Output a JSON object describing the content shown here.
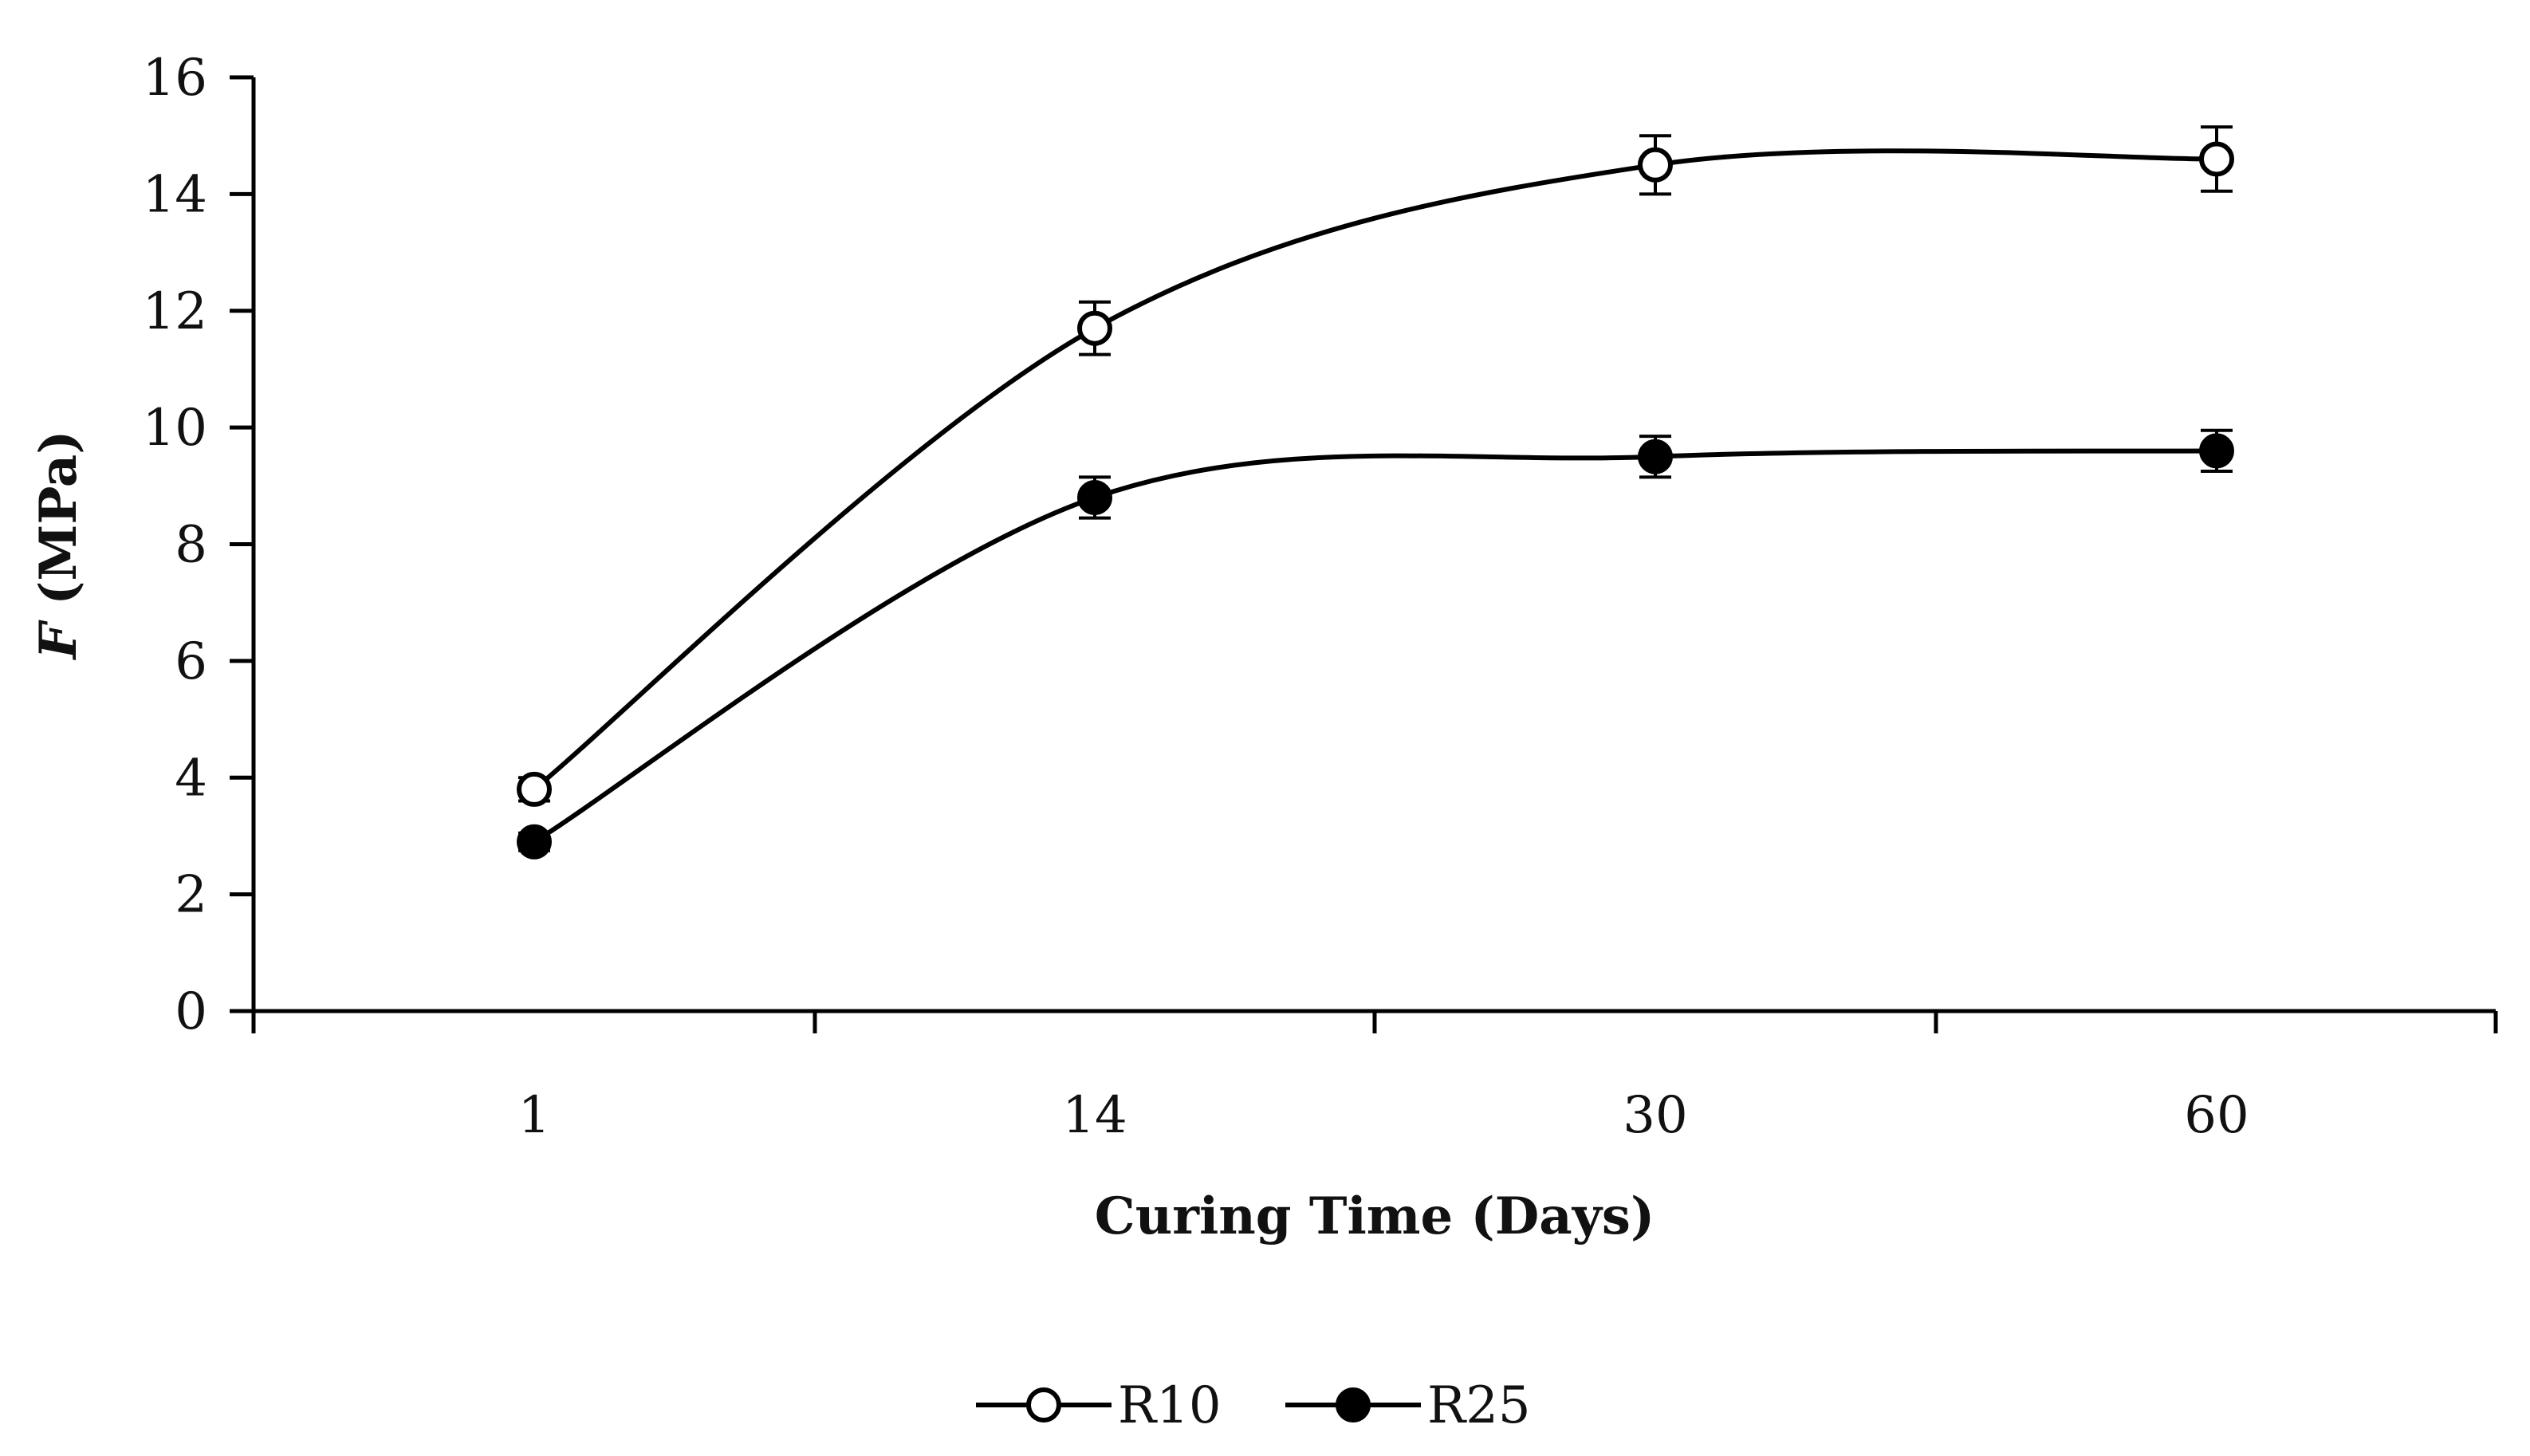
{
  "chart_data": {
    "type": "line",
    "title": "",
    "xlabel": "Curing Time (Days)",
    "ylabel_italic": "F",
    "ylabel_rest": " (MPa)",
    "categories": [
      "1",
      "14",
      "30",
      "60"
    ],
    "ylim": [
      0,
      16
    ],
    "yticks": [
      "0",
      "2",
      "4",
      "6",
      "8",
      "10",
      "12",
      "14",
      "16"
    ],
    "series": [
      {
        "name": "R10",
        "marker": "open-circle",
        "values": [
          3.8,
          11.7,
          14.5,
          14.6
        ],
        "errors": [
          0.2,
          0.45,
          0.5,
          0.55
        ]
      },
      {
        "name": "R25",
        "marker": "filled-circle",
        "values": [
          2.9,
          8.8,
          9.5,
          9.6
        ],
        "errors": [
          0.15,
          0.35,
          0.35,
          0.35
        ]
      }
    ],
    "legend_position": "bottom-center",
    "grid": false
  }
}
